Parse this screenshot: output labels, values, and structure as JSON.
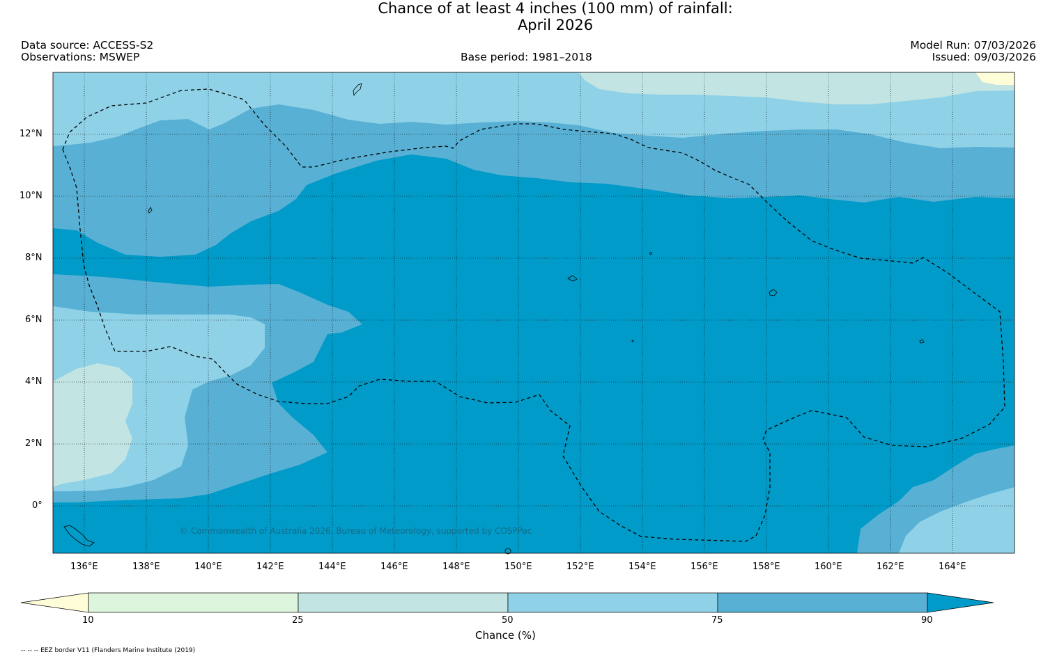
{
  "title": {
    "line1": "Chance of at least 4 inches (100  mm) of rainfall:",
    "line2": "April 2026"
  },
  "header": {
    "data_source": "Data source: ACCESS-S2",
    "observations": "Observations: MSWEP",
    "base_period": "Base period: 1981–2018",
    "model_run": "Model Run: 07/03/2026",
    "issued": "Issued: 09/03/2026"
  },
  "map": {
    "lat_labels": [
      "12°N",
      "10°N",
      "8°N",
      "6°N",
      "4°N",
      "2°N",
      "0°"
    ],
    "lon_labels": [
      "136°E",
      "138°E",
      "140°E",
      "142°E",
      "144°E",
      "146°E",
      "148°E",
      "150°E",
      "152°E",
      "154°E",
      "156°E",
      "158°E",
      "160°E",
      "162°E",
      "164°E"
    ],
    "copyright": "© Commonwealth of Australia 2026, Bureau of Meteorology, supported by COSPPac"
  },
  "colorbar": {
    "ticks": [
      "10",
      "25",
      "50",
      "75",
      "90"
    ],
    "label": "Chance (%)",
    "colors": {
      "lt10": "#fffdd8",
      "c10_25": "#ddf5dc",
      "c25_50": "#c2e4e2",
      "c50_75": "#8fd2e8",
      "c75_90": "#58b0d4",
      "gt90": "#009bc8"
    }
  },
  "footer": {
    "eez_note": "-- -- -- EEZ border V11 (Flanders Marine Institute (2019)"
  }
}
